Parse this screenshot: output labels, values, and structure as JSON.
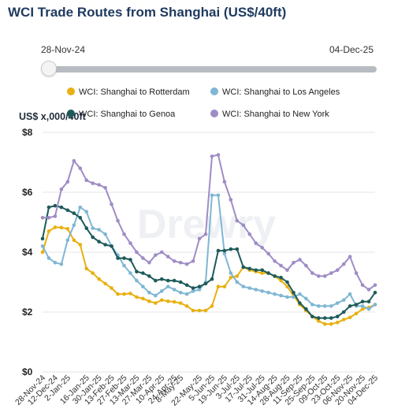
{
  "header": {
    "title": "WCI Trade Routes from Shanghai (US$/40ft)"
  },
  "range_slider": {
    "start_label": "28-Nov-24",
    "end_label": "04-Dec-25"
  },
  "watermark": "Drewry",
  "chart_data": {
    "type": "line",
    "title": "WCI Trade Routes from Shanghai (US$/40ft)",
    "ylabel": "US$ x,000/40ft",
    "xlabel": "",
    "ylim": [
      0,
      8
    ],
    "yticks": [
      "$0",
      "$2",
      "$4",
      "$6",
      "$8"
    ],
    "ytick_values": [
      0,
      2,
      4,
      6,
      8
    ],
    "grid": true,
    "legend_position": "top",
    "x_tick_labels": [
      "28-Nov-24",
      "12-Dec-24",
      "2-Jan-25",
      "16-Jan-25",
      "30-Jan-25",
      "13-Feb-25",
      "27-Feb-25",
      "13-Mar-25",
      "27-Mar-25",
      "10-Apr-25",
      "24-Apr-25",
      "8-May-25",
      "22-May-25",
      "5-Jun-25",
      "19-Jun-25",
      "3-Jul-25",
      "17-Jul-25",
      "31-Jul-25",
      "14-Aug-25",
      "28-Aug-25",
      "11-Sep-25",
      "25-Sep-25",
      "09-Oct-25",
      "23-Oct-25",
      "06-Nov-25",
      "20-Nov-25",
      "04-Dec-25"
    ],
    "x": [
      "28-Nov-24",
      "05-Dec-24",
      "12-Dec-24",
      "19-Dec-24",
      "26-Dec-24",
      "02-Jan-25",
      "09-Jan-25",
      "16-Jan-25",
      "23-Jan-25",
      "30-Jan-25",
      "06-Feb-25",
      "13-Feb-25",
      "20-Feb-25",
      "27-Feb-25",
      "06-Mar-25",
      "13-Mar-25",
      "20-Mar-25",
      "27-Mar-25",
      "03-Apr-25",
      "10-Apr-25",
      "17-Apr-25",
      "24-Apr-25",
      "01-May-25",
      "08-May-25",
      "15-May-25",
      "22-May-25",
      "29-May-25",
      "05-Jun-25",
      "12-Jun-25",
      "19-Jun-25",
      "26-Jun-25",
      "03-Jul-25",
      "10-Jul-25",
      "17-Jul-25",
      "24-Jul-25",
      "31-Jul-25",
      "07-Aug-25",
      "14-Aug-25",
      "21-Aug-25",
      "28-Aug-25",
      "04-Sep-25",
      "11-Sep-25",
      "18-Sep-25",
      "25-Sep-25",
      "02-Oct-25",
      "09-Oct-25",
      "16-Oct-25",
      "23-Oct-25",
      "30-Oct-25",
      "06-Nov-25",
      "13-Nov-25",
      "20-Nov-25",
      "27-Nov-25",
      "04-Dec-25"
    ],
    "series": [
      {
        "name": "WCI: Shanghai to Rotterdam",
        "color": "#e8b010",
        "values": [
          4.0,
          4.7,
          4.83,
          4.82,
          4.78,
          4.4,
          4.25,
          3.45,
          3.3,
          3.1,
          2.95,
          2.8,
          2.6,
          2.6,
          2.62,
          2.5,
          2.45,
          2.36,
          2.3,
          2.4,
          2.36,
          2.34,
          2.3,
          2.2,
          2.05,
          2.05,
          2.05,
          2.2,
          2.85,
          2.85,
          3.15,
          3.2,
          3.5,
          3.4,
          3.35,
          3.3,
          3.3,
          3.2,
          3.05,
          2.85,
          2.55,
          2.25,
          2.05,
          1.85,
          1.7,
          1.6,
          1.6,
          1.65,
          1.75,
          1.82,
          1.95,
          2.1,
          2.15,
          2.25
        ]
      },
      {
        "name": "WCI: Shanghai to Los Angeles",
        "color": "#7fb6d4",
        "values": [
          4.2,
          3.8,
          3.65,
          3.6,
          4.4,
          4.9,
          5.5,
          5.35,
          4.8,
          4.75,
          4.6,
          4.2,
          3.9,
          3.55,
          3.3,
          3.05,
          2.85,
          2.65,
          2.55,
          2.7,
          2.85,
          2.75,
          2.65,
          2.6,
          2.7,
          2.75,
          3.0,
          5.9,
          5.9,
          3.95,
          3.3,
          3.0,
          2.85,
          2.8,
          2.75,
          2.7,
          2.65,
          2.6,
          2.55,
          2.5,
          2.5,
          2.6,
          2.45,
          2.25,
          2.2,
          2.2,
          2.2,
          2.3,
          2.4,
          2.6,
          2.2,
          2.2,
          2.1,
          2.25
        ]
      },
      {
        "name": "WCI: Shanghai to Genoa",
        "color": "#1e5a5a",
        "values": [
          4.45,
          5.5,
          5.55,
          5.5,
          5.4,
          5.3,
          5.15,
          4.8,
          4.5,
          4.35,
          4.25,
          4.2,
          3.8,
          3.8,
          3.75,
          3.35,
          3.3,
          3.2,
          3.05,
          3.1,
          3.05,
          3.05,
          3.0,
          2.9,
          2.8,
          2.85,
          2.95,
          3.1,
          4.05,
          4.05,
          4.1,
          4.1,
          3.5,
          3.45,
          3.4,
          3.4,
          3.3,
          3.2,
          3.15,
          3.0,
          2.65,
          2.3,
          2.1,
          1.85,
          1.8,
          1.8,
          1.8,
          1.85,
          2.0,
          2.2,
          2.25,
          2.35,
          2.35,
          2.65
        ]
      },
      {
        "name": "WCI: Shanghai to New York",
        "color": "#9f8cc6",
        "values": [
          5.15,
          5.15,
          5.2,
          6.1,
          6.35,
          7.05,
          6.8,
          6.4,
          6.3,
          6.25,
          6.15,
          5.6,
          5.05,
          4.6,
          4.3,
          4.0,
          3.8,
          3.65,
          3.9,
          4.0,
          3.85,
          3.7,
          3.65,
          3.6,
          3.7,
          4.45,
          4.6,
          7.2,
          7.25,
          6.35,
          5.75,
          5.05,
          4.9,
          4.6,
          4.3,
          4.15,
          3.95,
          3.7,
          3.55,
          3.4,
          3.65,
          3.75,
          3.55,
          3.3,
          3.2,
          3.2,
          3.3,
          3.4,
          3.6,
          3.85,
          3.3,
          2.9,
          2.75,
          2.9
        ]
      }
    ]
  }
}
